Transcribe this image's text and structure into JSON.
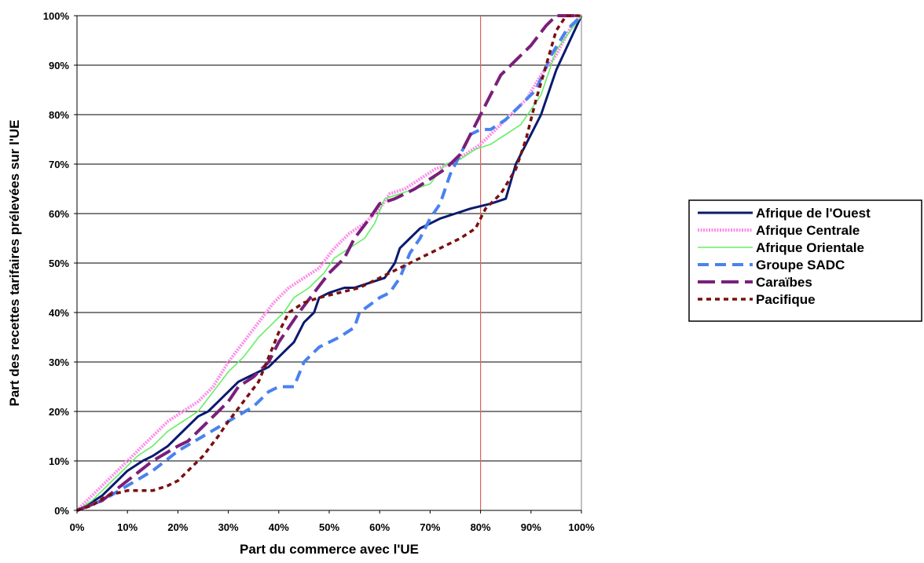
{
  "chart_data": {
    "type": "line",
    "xlabel": "Part du commerce avec l'UE",
    "ylabel": "Part des recettes tarifaires prélevées sur l'UE",
    "xlim": [
      0,
      100
    ],
    "ylim": [
      0,
      100
    ],
    "x_ticks": [
      "0%",
      "10%",
      "20%",
      "30%",
      "40%",
      "50%",
      "60%",
      "70%",
      "80%",
      "90%",
      "100%"
    ],
    "y_ticks": [
      "0%",
      "10%",
      "20%",
      "30%",
      "40%",
      "50%",
      "60%",
      "70%",
      "80%",
      "90%",
      "100%"
    ],
    "grid": "horizontal",
    "legend": "right",
    "reference_line": {
      "x": 80,
      "color": "#e06060"
    },
    "series": [
      {
        "name": "Afrique de l'Ouest",
        "color": "#0a1a6e",
        "style": "solid",
        "points": [
          [
            0,
            0
          ],
          [
            2,
            1
          ],
          [
            5,
            3
          ],
          [
            8,
            6
          ],
          [
            10,
            8
          ],
          [
            13,
            10
          ],
          [
            15,
            11
          ],
          [
            18,
            13
          ],
          [
            20,
            15
          ],
          [
            22,
            17
          ],
          [
            24,
            19
          ],
          [
            26,
            20
          ],
          [
            28,
            22
          ],
          [
            30,
            24
          ],
          [
            32,
            26
          ],
          [
            34,
            27
          ],
          [
            36,
            28
          ],
          [
            38,
            29
          ],
          [
            40,
            31
          ],
          [
            42,
            33
          ],
          [
            43,
            34
          ],
          [
            45,
            38
          ],
          [
            47,
            40
          ],
          [
            48,
            43
          ],
          [
            50,
            44
          ],
          [
            53,
            45
          ],
          [
            55,
            45
          ],
          [
            58,
            46
          ],
          [
            61,
            47
          ],
          [
            63,
            50
          ],
          [
            64,
            53
          ],
          [
            66,
            55
          ],
          [
            68,
            57
          ],
          [
            70,
            58
          ],
          [
            72,
            59
          ],
          [
            75,
            60
          ],
          [
            78,
            61
          ],
          [
            82,
            62
          ],
          [
            85,
            63
          ],
          [
            87,
            70
          ],
          [
            90,
            76
          ],
          [
            92,
            80
          ],
          [
            95,
            89
          ],
          [
            100,
            100
          ]
        ]
      },
      {
        "name": "Afrique Centrale",
        "color": "#ff88e8",
        "style": "dotted",
        "points": [
          [
            0,
            0
          ],
          [
            3,
            3
          ],
          [
            6,
            6
          ],
          [
            9,
            9
          ],
          [
            12,
            12
          ],
          [
            15,
            15
          ],
          [
            18,
            18
          ],
          [
            21,
            20
          ],
          [
            24,
            22
          ],
          [
            27,
            25
          ],
          [
            30,
            30
          ],
          [
            33,
            34
          ],
          [
            36,
            38
          ],
          [
            39,
            42
          ],
          [
            42,
            45
          ],
          [
            45,
            47
          ],
          [
            48,
            49
          ],
          [
            51,
            53
          ],
          [
            54,
            56
          ],
          [
            57,
            58
          ],
          [
            60,
            61
          ],
          [
            62,
            64
          ],
          [
            65,
            65
          ],
          [
            68,
            67
          ],
          [
            71,
            69
          ],
          [
            74,
            70
          ],
          [
            77,
            72
          ],
          [
            80,
            74
          ],
          [
            83,
            77
          ],
          [
            86,
            80
          ],
          [
            89,
            83
          ],
          [
            92,
            88
          ],
          [
            95,
            92
          ],
          [
            98,
            98
          ],
          [
            100,
            100
          ]
        ]
      },
      {
        "name": "Afrique Orientale",
        "color": "#66ee66",
        "style": "solid",
        "points": [
          [
            0,
            0
          ],
          [
            3,
            2
          ],
          [
            6,
            5
          ],
          [
            9,
            8
          ],
          [
            12,
            11
          ],
          [
            15,
            13
          ],
          [
            18,
            16
          ],
          [
            21,
            18
          ],
          [
            24,
            20
          ],
          [
            27,
            24
          ],
          [
            30,
            28
          ],
          [
            33,
            31
          ],
          [
            36,
            35
          ],
          [
            39,
            38
          ],
          [
            41,
            40
          ],
          [
            43,
            43
          ],
          [
            46,
            45
          ],
          [
            49,
            48
          ],
          [
            51,
            51
          ],
          [
            54,
            53
          ],
          [
            57,
            55
          ],
          [
            59,
            58
          ],
          [
            61,
            63
          ],
          [
            64,
            64
          ],
          [
            67,
            65
          ],
          [
            70,
            66
          ],
          [
            73,
            70
          ],
          [
            76,
            71
          ],
          [
            79,
            73
          ],
          [
            82,
            74
          ],
          [
            85,
            76
          ],
          [
            88,
            78
          ],
          [
            90,
            81
          ],
          [
            92,
            84
          ],
          [
            95,
            93
          ],
          [
            100,
            100
          ]
        ]
      },
      {
        "name": "Groupe SADC",
        "color": "#4a82ee",
        "style": "dashed",
        "points": [
          [
            0,
            0
          ],
          [
            5,
            2
          ],
          [
            10,
            5
          ],
          [
            15,
            8
          ],
          [
            20,
            12
          ],
          [
            25,
            15
          ],
          [
            30,
            18
          ],
          [
            35,
            21
          ],
          [
            38,
            24
          ],
          [
            40,
            25
          ],
          [
            43,
            25
          ],
          [
            45,
            30
          ],
          [
            48,
            33
          ],
          [
            52,
            35
          ],
          [
            55,
            37
          ],
          [
            56,
            40
          ],
          [
            60,
            43
          ],
          [
            62,
            44
          ],
          [
            64,
            47
          ],
          [
            66,
            52
          ],
          [
            68,
            55
          ],
          [
            70,
            59
          ],
          [
            72,
            62
          ],
          [
            74,
            68
          ],
          [
            76,
            72
          ],
          [
            78,
            76
          ],
          [
            80,
            77
          ],
          [
            82,
            77
          ],
          [
            85,
            79
          ],
          [
            88,
            82
          ],
          [
            91,
            85
          ],
          [
            94,
            92
          ],
          [
            97,
            97
          ],
          [
            100,
            100
          ]
        ]
      },
      {
        "name": "Caraïbes",
        "color": "#7a1f7a",
        "style": "longdash",
        "points": [
          [
            0,
            0
          ],
          [
            5,
            2
          ],
          [
            10,
            6
          ],
          [
            15,
            10
          ],
          [
            20,
            13
          ],
          [
            22,
            14
          ],
          [
            25,
            17
          ],
          [
            28,
            20
          ],
          [
            30,
            22
          ],
          [
            32,
            25
          ],
          [
            35,
            27
          ],
          [
            38,
            30
          ],
          [
            40,
            34
          ],
          [
            42,
            37
          ],
          [
            44,
            40
          ],
          [
            47,
            44
          ],
          [
            50,
            48
          ],
          [
            53,
            51
          ],
          [
            55,
            55
          ],
          [
            58,
            59
          ],
          [
            60,
            62
          ],
          [
            63,
            63
          ],
          [
            65,
            64
          ],
          [
            67,
            65
          ],
          [
            70,
            67
          ],
          [
            73,
            69
          ],
          [
            76,
            72
          ],
          [
            79,
            78
          ],
          [
            82,
            84
          ],
          [
            84,
            88
          ],
          [
            87,
            91
          ],
          [
            90,
            94
          ],
          [
            93,
            98
          ],
          [
            95,
            100
          ],
          [
            100,
            100
          ]
        ]
      },
      {
        "name": "Pacifique",
        "color": "#7a1010",
        "style": "shortdash",
        "points": [
          [
            0,
            0
          ],
          [
            3,
            1
          ],
          [
            6,
            3
          ],
          [
            10,
            4
          ],
          [
            15,
            4
          ],
          [
            18,
            5
          ],
          [
            20,
            6
          ],
          [
            22,
            8
          ],
          [
            25,
            11
          ],
          [
            28,
            15
          ],
          [
            30,
            18
          ],
          [
            33,
            22
          ],
          [
            36,
            26
          ],
          [
            38,
            31
          ],
          [
            40,
            36
          ],
          [
            42,
            40
          ],
          [
            45,
            42
          ],
          [
            48,
            43
          ],
          [
            52,
            44
          ],
          [
            56,
            45
          ],
          [
            60,
            47
          ],
          [
            64,
            49
          ],
          [
            68,
            51
          ],
          [
            72,
            53
          ],
          [
            76,
            55
          ],
          [
            79,
            57
          ],
          [
            81,
            61
          ],
          [
            84,
            64
          ],
          [
            87,
            69
          ],
          [
            89,
            75
          ],
          [
            91,
            83
          ],
          [
            93,
            90
          ],
          [
            95,
            97
          ],
          [
            97,
            100
          ],
          [
            100,
            100
          ]
        ]
      }
    ]
  }
}
